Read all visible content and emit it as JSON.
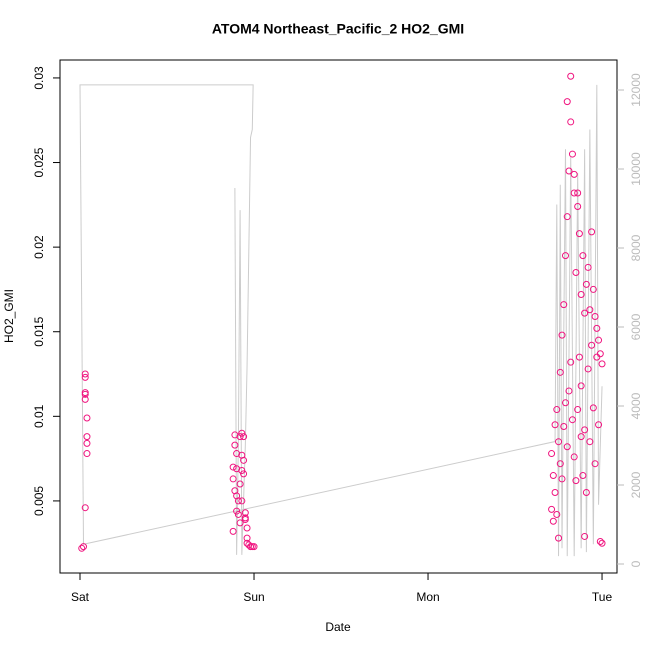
{
  "chart_data": {
    "type": "scatter",
    "title": "ATOM4 Northeast_Pacific_2 HO2_GMI",
    "xlabel": "Date",
    "ylabel": "HO2_GMI",
    "xlim": [
      -0.115,
      3.086
    ],
    "ylim": [
      0.00074,
      0.03106
    ],
    "y2lim": [
      -228,
      12760
    ],
    "xticks": [
      {
        "value": 0,
        "label": "Sat"
      },
      {
        "value": 1,
        "label": "Sun"
      },
      {
        "value": 2,
        "label": "Mon"
      },
      {
        "value": 3,
        "label": "Tue"
      }
    ],
    "yticks": [
      0.005,
      0.01,
      0.015,
      0.02,
      0.025,
      0.03
    ],
    "y2ticks": [
      0,
      2000,
      4000,
      6000,
      8000,
      10000,
      12000
    ],
    "series": [
      {
        "type": "line",
        "axis": "y2",
        "color": "#cccccc",
        "x": [
          0.89,
          0.9,
          0.91,
          0.92,
          0.93,
          0.95,
          0.96,
          0.98,
          0.99,
          0.995,
          0.0,
          0.02,
          2.73,
          2.74,
          2.75,
          2.76,
          2.77,
          2.78,
          2.79,
          2.8,
          2.82,
          2.84,
          2.86,
          2.88,
          2.9,
          2.91,
          2.93,
          2.95,
          2.97,
          2.98,
          3.0
        ],
        "values": [
          9520,
          230,
          3000,
          8960,
          230,
          3000,
          5000,
          10800,
          11000,
          12130,
          12130,
          500,
          3100,
          9100,
          200,
          9600,
          400,
          5800,
          10500,
          200,
          10300,
          200,
          9900,
          400,
          10500,
          300,
          11000,
          500,
          12130,
          1500,
          4500
        ]
      },
      {
        "type": "scatter",
        "color": "#f0147f",
        "x": [
          0.03,
          0.03,
          0.03,
          0.03,
          0.03,
          0.04,
          0.04,
          0.04,
          0.04,
          0.03,
          0.02,
          0.01,
          0.89,
          0.89,
          0.9,
          0.88,
          0.9,
          0.88,
          0.89,
          0.9,
          0.91,
          0.92,
          0.93,
          0.94,
          0.93,
          0.94,
          0.93,
          0.92,
          0.91,
          0.93,
          0.88,
          0.95,
          0.95,
          0.96,
          0.96,
          0.97,
          0.98,
          0.99,
          1.0,
          0.96,
          0.9,
          0.94,
          0.95,
          0.92,
          2.71,
          2.71,
          2.72,
          2.72,
          2.73,
          2.73,
          2.74,
          2.74,
          2.75,
          2.75,
          2.76,
          2.76,
          2.77,
          2.77,
          2.78,
          2.78,
          2.79,
          2.79,
          2.8,
          2.8,
          2.81,
          2.81,
          2.82,
          2.82,
          2.83,
          2.83,
          2.84,
          2.84,
          2.85,
          2.85,
          2.86,
          2.86,
          2.87,
          2.87,
          2.88,
          2.88,
          2.89,
          2.89,
          2.9,
          2.9,
          2.91,
          2.91,
          2.92,
          2.92,
          2.93,
          2.93,
          2.94,
          2.94,
          2.95,
          2.95,
          2.96,
          2.96,
          2.97,
          2.97,
          2.98,
          2.98,
          2.99,
          2.99,
          3.0,
          3.0,
          2.8,
          2.82,
          2.84,
          2.86,
          2.88,
          2.9
        ],
        "values": [
          0.0125,
          0.0123,
          0.0114,
          0.0113,
          0.011,
          0.0099,
          0.0088,
          0.0084,
          0.0078,
          0.0046,
          0.0023,
          0.0022,
          0.0089,
          0.0083,
          0.0078,
          0.007,
          0.0069,
          0.0063,
          0.0056,
          0.0053,
          0.0042,
          0.0037,
          0.009,
          0.0088,
          0.0077,
          0.0074,
          0.0068,
          0.006,
          0.005,
          0.005,
          0.0032,
          0.0043,
          0.0039,
          0.0034,
          0.0028,
          0.0024,
          0.0023,
          0.0023,
          0.0023,
          0.0025,
          0.0044,
          0.0066,
          0.004,
          0.0088,
          0.0078,
          0.0045,
          0.0065,
          0.0038,
          0.0095,
          0.0055,
          0.0104,
          0.0042,
          0.0085,
          0.0028,
          0.0126,
          0.0072,
          0.0148,
          0.0063,
          0.0166,
          0.0094,
          0.0195,
          0.0108,
          0.0218,
          0.0082,
          0.0245,
          0.0115,
          0.0301,
          0.0132,
          0.0255,
          0.0098,
          0.0243,
          0.0076,
          0.0185,
          0.0062,
          0.0232,
          0.0104,
          0.0208,
          0.0135,
          0.0172,
          0.0088,
          0.0195,
          0.0065,
          0.0161,
          0.0092,
          0.0178,
          0.0055,
          0.0188,
          0.0128,
          0.0163,
          0.0085,
          0.0209,
          0.0142,
          0.0175,
          0.0105,
          0.0159,
          0.0072,
          0.0152,
          0.0135,
          0.0145,
          0.0095,
          0.0137,
          0.0026,
          0.0131,
          0.0025,
          0.0286,
          0.0274,
          0.0232,
          0.0224,
          0.0118,
          0.0029
        ]
      }
    ]
  }
}
